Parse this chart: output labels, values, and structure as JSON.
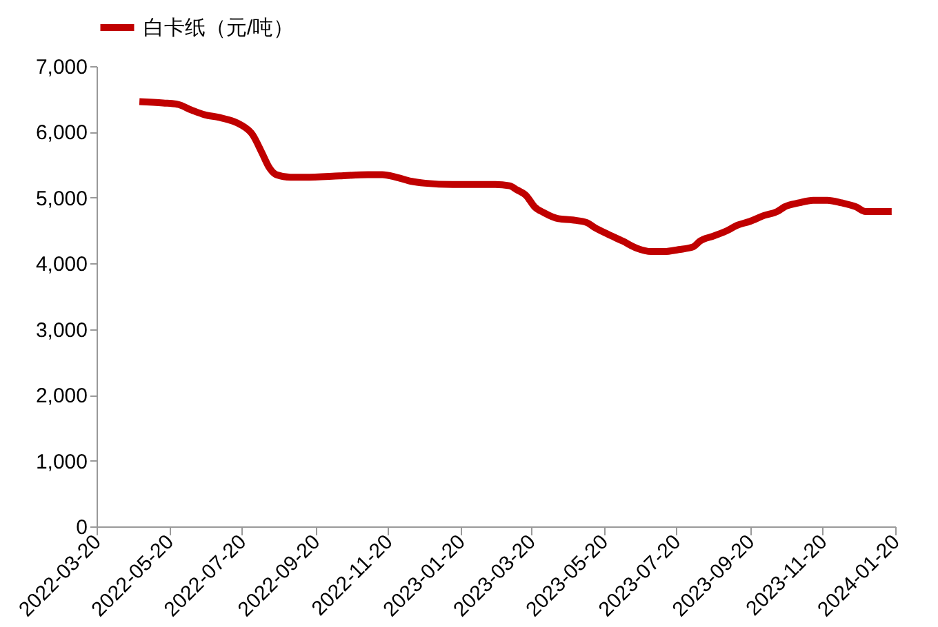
{
  "chart_data": {
    "type": "line",
    "x": [
      "2022-04-25",
      "2022-05-15",
      "2022-05-27",
      "2022-06-08",
      "2022-06-19",
      "2022-07-01",
      "2022-07-13",
      "2022-07-19",
      "2022-07-29",
      "2022-08-06",
      "2022-08-12",
      "2022-08-18",
      "2022-08-30",
      "2022-09-11",
      "2022-10-10",
      "2022-11-03",
      "2022-11-15",
      "2022-11-27",
      "2022-12-09",
      "2022-12-21",
      "2023-01-13",
      "2023-02-18",
      "2023-03-02",
      "2023-03-08",
      "2023-03-16",
      "2023-03-23",
      "2023-03-31",
      "2023-04-12",
      "2023-04-24",
      "2023-05-06",
      "2023-05-12",
      "2023-05-24",
      "2023-06-05",
      "2023-06-17",
      "2023-06-29",
      "2023-07-10",
      "2023-07-22",
      "2023-08-03",
      "2023-08-09",
      "2023-08-21",
      "2023-09-02",
      "2023-09-08",
      "2023-09-20",
      "2023-10-02",
      "2023-10-13",
      "2023-10-19",
      "2023-10-31",
      "2023-11-12",
      "2023-11-24",
      "2023-12-06",
      "2023-12-18",
      "2023-12-26",
      "2024-01-05",
      "2024-01-17"
    ],
    "series": [
      {
        "name": "白卡纸（元/吨）",
        "color": "#c00000",
        "values": [
          6460,
          6440,
          6420,
          6330,
          6260,
          6220,
          6160,
          6110,
          5960,
          5680,
          5460,
          5350,
          5310,
          5310,
          5330,
          5350,
          5350,
          5310,
          5250,
          5220,
          5200,
          5200,
          5180,
          5120,
          5030,
          4860,
          4770,
          4680,
          4660,
          4620,
          4550,
          4440,
          4340,
          4230,
          4180,
          4180,
          4210,
          4250,
          4340,
          4420,
          4510,
          4570,
          4640,
          4730,
          4790,
          4860,
          4920,
          4960,
          4960,
          4920,
          4860,
          4790,
          4790,
          4790
        ]
      }
    ],
    "xlim": [
      "2022-03-20",
      "2024-01-20"
    ],
    "xticks": [
      "2022-03-20",
      "2022-05-20",
      "2022-07-20",
      "2022-09-20",
      "2022-11-20",
      "2023-01-20",
      "2023-03-20",
      "2023-05-20",
      "2023-07-20",
      "2023-09-20",
      "2023-11-20",
      "2024-01-20"
    ],
    "ylim": [
      0,
      7000
    ],
    "yticks": [
      0,
      {
        "value": 1000,
        "label": "1,000"
      },
      {
        "value": 2000,
        "label": "2,000"
      },
      {
        "value": 3000,
        "label": "3,000"
      },
      {
        "value": 4000,
        "label": "4,000"
      },
      {
        "value": 5000,
        "label": "5,000"
      },
      {
        "value": 6000,
        "label": "6,000"
      },
      {
        "value": 7000,
        "label": "7,000"
      }
    ],
    "grid": false,
    "legend": "top",
    "marker": "none",
    "line_style": "solid"
  }
}
